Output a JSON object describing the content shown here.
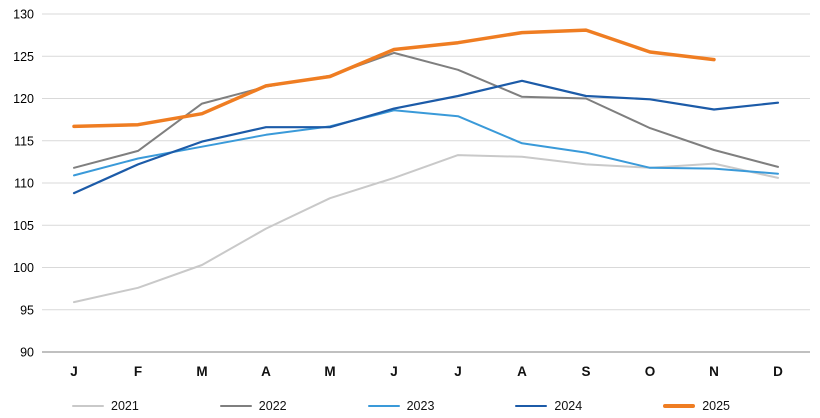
{
  "chart_data": {
    "type": "line",
    "title": "",
    "xlabel": "",
    "ylabel": "",
    "categories": [
      "J",
      "F",
      "M",
      "A",
      "M",
      "J",
      "J",
      "A",
      "S",
      "O",
      "N",
      "D"
    ],
    "series": [
      {
        "name": "2021",
        "color": "#c9c9c9",
        "line_width": 2,
        "values": [
          95.9,
          97.6,
          100.3,
          104.6,
          108.2,
          110.6,
          113.3,
          113.1,
          112.2,
          111.8,
          112.3,
          110.6
        ]
      },
      {
        "name": "2022",
        "color": "#7f7f7f",
        "line_width": 2,
        "values": [
          111.8,
          113.8,
          119.4,
          121.4,
          122.7,
          125.4,
          123.4,
          120.2,
          120.0,
          116.5,
          113.9,
          111.9
        ]
      },
      {
        "name": "2023",
        "color": "#3a9ad9",
        "line_width": 2,
        "values": [
          110.9,
          112.9,
          114.3,
          115.7,
          116.7,
          118.6,
          117.9,
          114.7,
          113.6,
          111.8,
          111.7,
          111.1
        ]
      },
      {
        "name": "2024",
        "color": "#1c5ba8",
        "line_width": 2.2,
        "values": [
          108.8,
          112.2,
          114.9,
          116.6,
          116.6,
          118.8,
          120.3,
          122.1,
          120.3,
          119.9,
          118.7,
          119.5
        ]
      },
      {
        "name": "2025",
        "color": "#ef7d22",
        "line_width": 3.5,
        "values": [
          116.7,
          116.9,
          118.2,
          121.5,
          122.6,
          125.8,
          126.6,
          127.8,
          128.1,
          125.5,
          124.6,
          null
        ]
      }
    ],
    "ylim": [
      90,
      130
    ],
    "ytick_step": 5,
    "grid": true,
    "legend_position": "bottom"
  }
}
